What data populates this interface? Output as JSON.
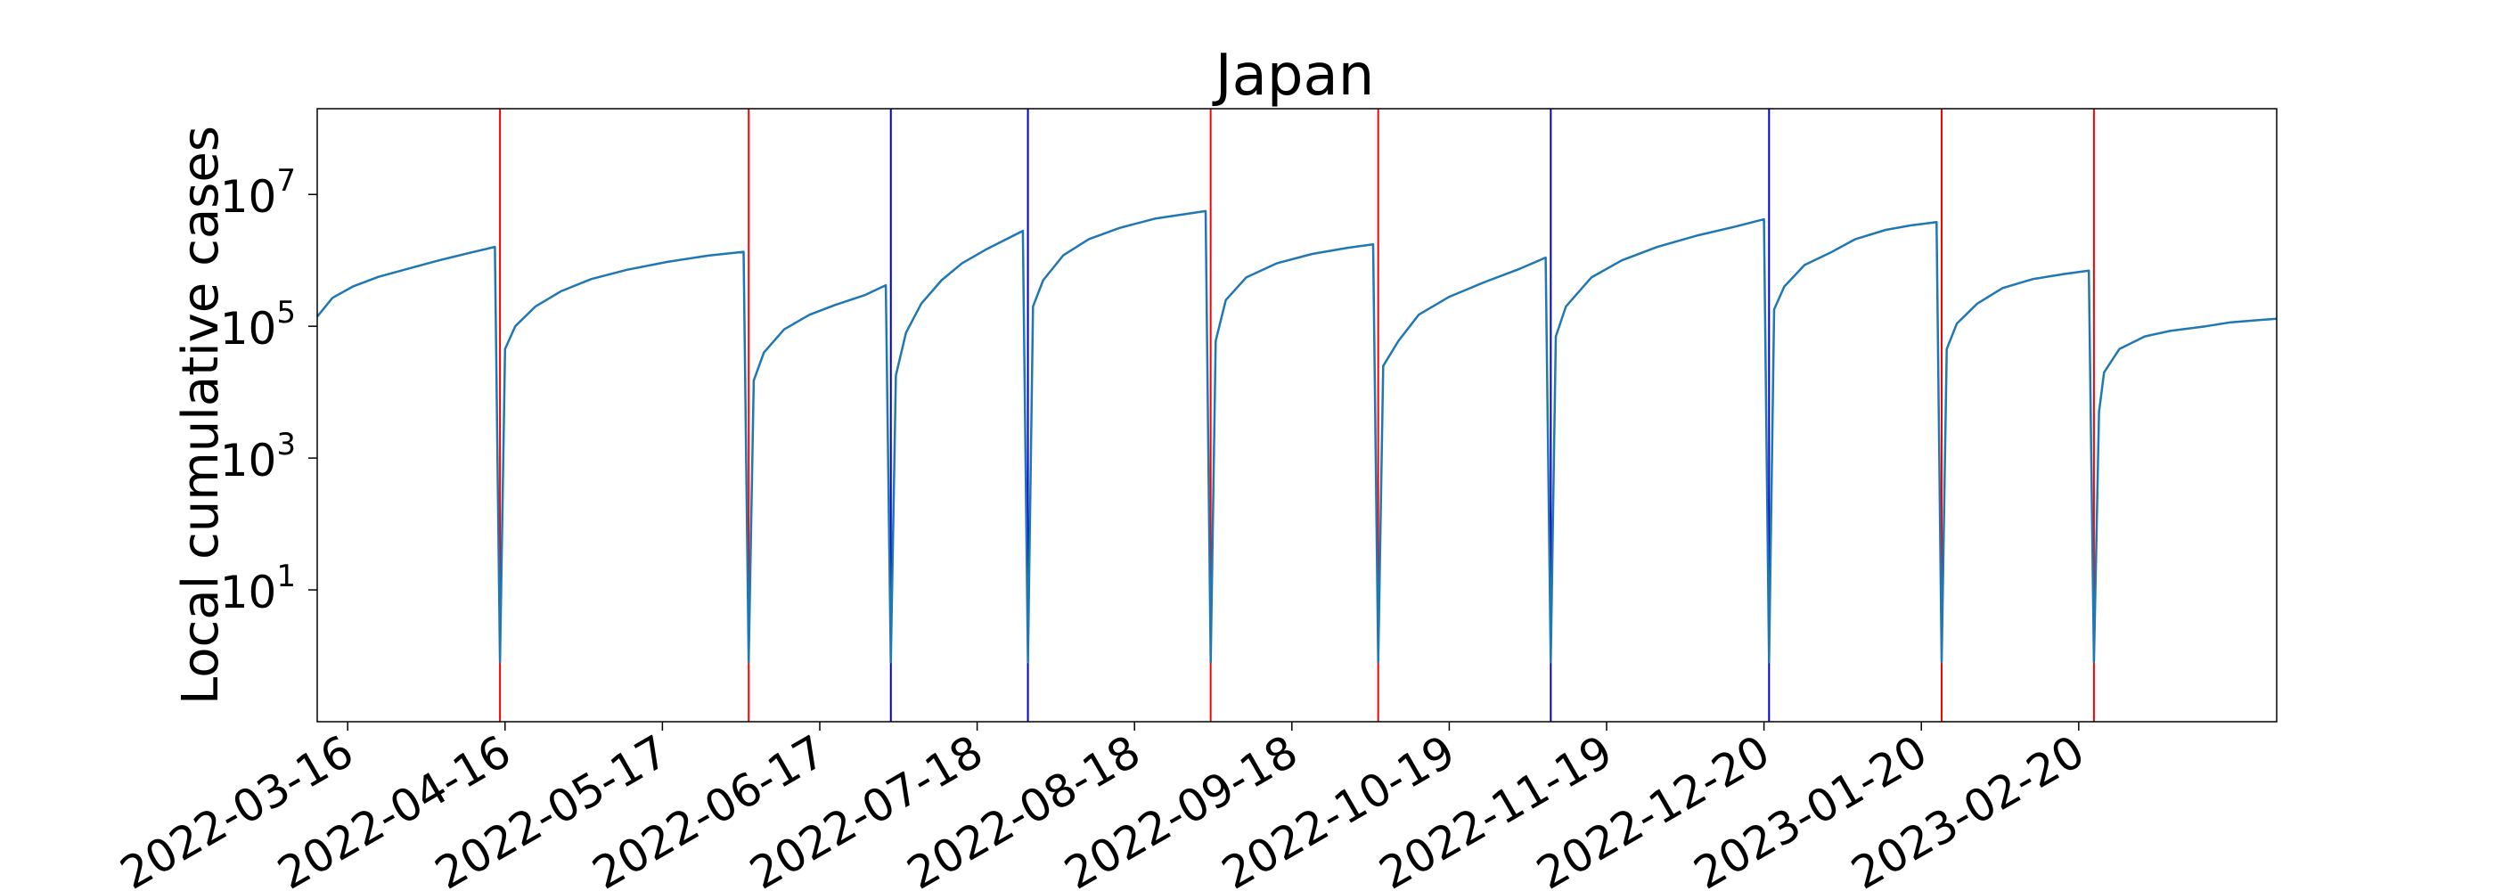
{
  "chart_data": {
    "type": "line",
    "title": "Japan",
    "xlabel": "",
    "ylabel": "Local cumulative cases",
    "yscale": "log",
    "ylim": [
      0.1,
      200000000
    ],
    "xlim": [
      "2022-03-10",
      "2023-03-31"
    ],
    "xticks": [
      "2022-03-16",
      "2022-04-16",
      "2022-05-17",
      "2022-06-17",
      "2022-07-18",
      "2022-08-18",
      "2022-09-18",
      "2022-10-19",
      "2022-11-19",
      "2022-12-20",
      "2023-01-20",
      "2023-02-20"
    ],
    "yticks": [
      {
        "base": "10",
        "exp": "1",
        "value": 10
      },
      {
        "base": "10",
        "exp": "3",
        "value": 1000
      },
      {
        "base": "10",
        "exp": "5",
        "value": 100000
      },
      {
        "base": "10",
        "exp": "7",
        "value": 10000000
      }
    ],
    "grid": false,
    "colors": {
      "series": "#1f77b4",
      "red_marker": "#ff0000",
      "blue_marker": "#0000cc",
      "axes": "#000000"
    },
    "vertical_lines": [
      {
        "date": "2022-04-15",
        "color": "red"
      },
      {
        "date": "2022-06-03",
        "color": "red"
      },
      {
        "date": "2022-07-01",
        "color": "blue"
      },
      {
        "date": "2022-07-28",
        "color": "blue"
      },
      {
        "date": "2022-09-02",
        "color": "red"
      },
      {
        "date": "2022-10-05",
        "color": "red"
      },
      {
        "date": "2022-11-08",
        "color": "blue"
      },
      {
        "date": "2022-12-21",
        "color": "blue"
      },
      {
        "date": "2023-01-24",
        "color": "red"
      },
      {
        "date": "2023-02-23",
        "color": "red"
      }
    ],
    "series": [
      {
        "points": [
          [
            "2022-03-10",
            140000
          ],
          [
            "2022-03-13",
            270000
          ],
          [
            "2022-03-17",
            400000
          ],
          [
            "2022-03-22",
            560000
          ],
          [
            "2022-03-28",
            750000
          ],
          [
            "2022-04-03",
            1000000
          ],
          [
            "2022-04-09",
            1300000
          ],
          [
            "2022-04-14",
            1600000
          ],
          [
            "2022-04-15",
            0.8
          ],
          [
            "2022-04-16",
            45000
          ],
          [
            "2022-04-18",
            100000
          ],
          [
            "2022-04-22",
            200000
          ],
          [
            "2022-04-27",
            340000
          ],
          [
            "2022-05-03",
            520000
          ],
          [
            "2022-05-10",
            720000
          ],
          [
            "2022-05-18",
            950000
          ],
          [
            "2022-05-26",
            1180000
          ],
          [
            "2022-06-02",
            1350000
          ],
          [
            "2022-06-03",
            0.8
          ],
          [
            "2022-06-04",
            15000
          ],
          [
            "2022-06-06",
            40000
          ],
          [
            "2022-06-10",
            90000
          ],
          [
            "2022-06-15",
            150000
          ],
          [
            "2022-06-20",
            210000
          ],
          [
            "2022-06-26",
            300000
          ],
          [
            "2022-06-30",
            420000
          ],
          [
            "2022-07-01",
            0.8
          ],
          [
            "2022-07-02",
            18000
          ],
          [
            "2022-07-04",
            80000
          ],
          [
            "2022-07-07",
            220000
          ],
          [
            "2022-07-11",
            500000
          ],
          [
            "2022-07-15",
            900000
          ],
          [
            "2022-07-20",
            1500000
          ],
          [
            "2022-07-27",
            2800000
          ],
          [
            "2022-07-28",
            0.8
          ],
          [
            "2022-07-29",
            200000
          ],
          [
            "2022-07-31",
            500000
          ],
          [
            "2022-08-04",
            1200000
          ],
          [
            "2022-08-09",
            2100000
          ],
          [
            "2022-08-15",
            3100000
          ],
          [
            "2022-08-22",
            4300000
          ],
          [
            "2022-09-01",
            5600000
          ],
          [
            "2022-09-02",
            0.8
          ],
          [
            "2022-09-03",
            60000
          ],
          [
            "2022-09-05",
            250000
          ],
          [
            "2022-09-09",
            550000
          ],
          [
            "2022-09-15",
            900000
          ],
          [
            "2022-09-22",
            1250000
          ],
          [
            "2022-09-29",
            1550000
          ],
          [
            "2022-10-04",
            1750000
          ],
          [
            "2022-10-05",
            0.8
          ],
          [
            "2022-10-06",
            25000
          ],
          [
            "2022-10-09",
            60000
          ],
          [
            "2022-10-13",
            150000
          ],
          [
            "2022-10-19",
            280000
          ],
          [
            "2022-10-26",
            470000
          ],
          [
            "2022-11-02",
            750000
          ],
          [
            "2022-11-07",
            1100000
          ],
          [
            "2022-11-08",
            0.8
          ],
          [
            "2022-11-09",
            70000
          ],
          [
            "2022-11-11",
            200000
          ],
          [
            "2022-11-16",
            550000
          ],
          [
            "2022-11-22",
            1000000
          ],
          [
            "2022-11-29",
            1600000
          ],
          [
            "2022-12-07",
            2400000
          ],
          [
            "2022-12-14",
            3200000
          ],
          [
            "2022-12-20",
            4200000
          ],
          [
            "2022-12-21",
            0.8
          ],
          [
            "2022-12-22",
            180000
          ],
          [
            "2022-12-24",
            400000
          ],
          [
            "2022-12-28",
            850000
          ],
          [
            "2023-01-02",
            1300000
          ],
          [
            "2023-01-07",
            2100000
          ],
          [
            "2023-01-13",
            2900000
          ],
          [
            "2023-01-18",
            3400000
          ],
          [
            "2023-01-23",
            3800000
          ],
          [
            "2023-01-24",
            0.8
          ],
          [
            "2023-01-25",
            45000
          ],
          [
            "2023-01-27",
            110000
          ],
          [
            "2023-01-31",
            220000
          ],
          [
            "2023-02-05",
            380000
          ],
          [
            "2023-02-11",
            520000
          ],
          [
            "2023-02-17",
            620000
          ],
          [
            "2023-02-22",
            700000
          ],
          [
            "2023-02-23",
            0.8
          ],
          [
            "2023-02-24",
            5000
          ],
          [
            "2023-02-25",
            20000
          ],
          [
            "2023-02-28",
            45000
          ],
          [
            "2023-03-05",
            70000
          ],
          [
            "2023-03-10",
            85000
          ],
          [
            "2023-03-17",
            100000
          ],
          [
            "2023-03-22",
            115000
          ],
          [
            "2023-03-31",
            130000
          ]
        ]
      }
    ]
  }
}
